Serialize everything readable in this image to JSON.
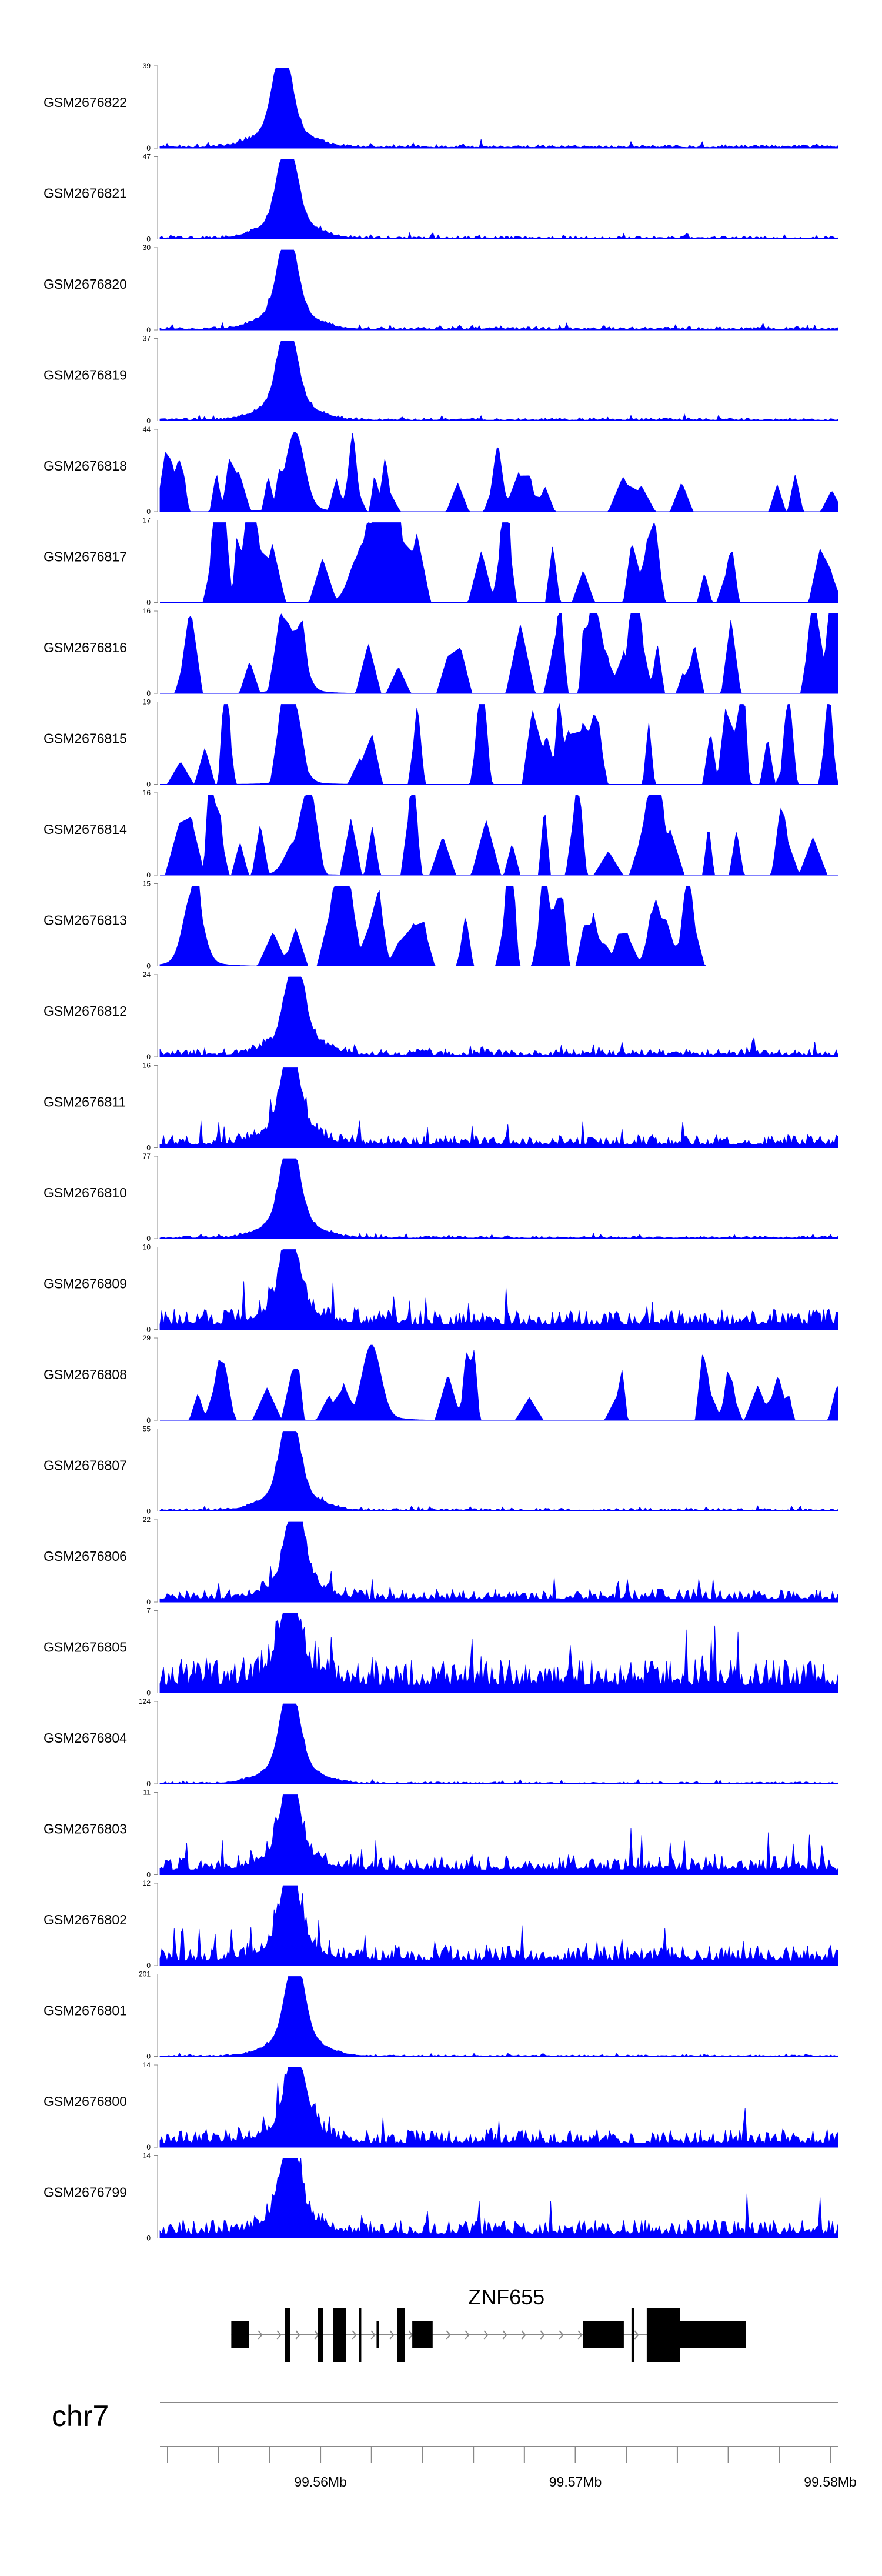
{
  "chart_data": {
    "type": "area",
    "title": "",
    "region": {
      "chromosome": "chr7",
      "start_mb": 99.5537,
      "end_mb": 99.5803
    },
    "color": "#0000ff",
    "tracks": [
      {
        "name": "GSM2676822",
        "ymax": "39",
        "ymin": "0",
        "peak_center": 99.5585,
        "peak_height": 1.0,
        "noise": 0.07,
        "sparse": false
      },
      {
        "name": "GSM2676821",
        "ymax": "47",
        "ymin": "0",
        "peak_center": 99.5587,
        "peak_height": 1.0,
        "noise": 0.06,
        "sparse": false
      },
      {
        "name": "GSM2676820",
        "ymax": "30",
        "ymin": "0",
        "peak_center": 99.5587,
        "peak_height": 1.0,
        "noise": 0.06,
        "sparse": false
      },
      {
        "name": "GSM2676819",
        "ymax": "37",
        "ymin": "0",
        "peak_center": 99.5587,
        "peak_height": 1.0,
        "noise": 0.06,
        "sparse": false
      },
      {
        "name": "GSM2676818",
        "ymax": "44",
        "ymin": "0",
        "peak_center": 99.559,
        "peak_height": 0.95,
        "noise": 0.2,
        "sparse": true
      },
      {
        "name": "GSM2676817",
        "ymax": "17",
        "ymin": "0",
        "peak_center": 99.5615,
        "peak_height": 0.55,
        "noise": 0.55,
        "sparse": true
      },
      {
        "name": "GSM2676816",
        "ymax": "16",
        "ymin": "0",
        "peak_center": 99.559,
        "peak_height": 0.75,
        "noise": 0.6,
        "sparse": true
      },
      {
        "name": "GSM2676815",
        "ymax": "19",
        "ymin": "0",
        "peak_center": 99.559,
        "peak_height": 0.4,
        "noise": 0.65,
        "sparse": true
      },
      {
        "name": "GSM2676814",
        "ymax": "16",
        "ymin": "0",
        "peak_center": 99.559,
        "peak_height": 0.4,
        "noise": 0.55,
        "sparse": true
      },
      {
        "name": "GSM2676813",
        "ymax": "15",
        "ymin": "0",
        "peak_center": 99.555,
        "peak_height": 0.9,
        "noise": 0.5,
        "sparse": true
      },
      {
        "name": "GSM2676812",
        "ymax": "24",
        "ymin": "0",
        "peak_center": 99.559,
        "peak_height": 0.95,
        "noise": 0.15,
        "sparse": false
      },
      {
        "name": "GSM2676811",
        "ymax": "16",
        "ymin": "0",
        "peak_center": 99.5588,
        "peak_height": 0.95,
        "noise": 0.25,
        "sparse": false
      },
      {
        "name": "GSM2676810",
        "ymax": "77",
        "ymin": "0",
        "peak_center": 99.5588,
        "peak_height": 1.0,
        "noise": 0.05,
        "sparse": false
      },
      {
        "name": "GSM2676809",
        "ymax": "10",
        "ymin": "0",
        "peak_center": 99.5588,
        "peak_height": 0.9,
        "noise": 0.4,
        "sparse": false
      },
      {
        "name": "GSM2676808",
        "ymax": "29",
        "ymin": "0",
        "peak_center": 99.562,
        "peak_height": 0.9,
        "noise": 0.35,
        "sparse": true
      },
      {
        "name": "GSM2676807",
        "ymax": "55",
        "ymin": "0",
        "peak_center": 99.5588,
        "peak_height": 1.0,
        "noise": 0.06,
        "sparse": false
      },
      {
        "name": "GSM2676806",
        "ymax": "22",
        "ymin": "0",
        "peak_center": 99.559,
        "peak_height": 0.95,
        "noise": 0.25,
        "sparse": false
      },
      {
        "name": "GSM2676805",
        "ymax": "7",
        "ymin": "0",
        "peak_center": 99.5588,
        "peak_height": 0.9,
        "noise": 0.65,
        "sparse": false
      },
      {
        "name": "GSM2676804",
        "ymax": "124",
        "ymin": "0",
        "peak_center": 99.5588,
        "peak_height": 1.0,
        "noise": 0.04,
        "sparse": false
      },
      {
        "name": "GSM2676803",
        "ymax": "11",
        "ymin": "0",
        "peak_center": 99.5588,
        "peak_height": 0.9,
        "noise": 0.4,
        "sparse": false
      },
      {
        "name": "GSM2676802",
        "ymax": "12",
        "ymin": "0",
        "peak_center": 99.5588,
        "peak_height": 0.9,
        "noise": 0.4,
        "sparse": false
      },
      {
        "name": "GSM2676801",
        "ymax": "201",
        "ymin": "0",
        "peak_center": 99.559,
        "peak_height": 1.0,
        "noise": 0.03,
        "sparse": false
      },
      {
        "name": "GSM2676800",
        "ymax": "14",
        "ymin": "0",
        "peak_center": 99.559,
        "peak_height": 0.95,
        "noise": 0.35,
        "sparse": false
      },
      {
        "name": "GSM2676799",
        "ymax": "14",
        "ymin": "0",
        "peak_center": 99.5588,
        "peak_height": 0.95,
        "noise": 0.35,
        "sparse": false
      }
    ],
    "gene": {
      "name": "ZNF655",
      "strand": "+",
      "start_mb": 99.5565,
      "end_mb": 99.5767,
      "exons_mb": [
        [
          99.5565,
          99.5572,
          "small"
        ],
        [
          99.5586,
          99.5588,
          "large"
        ],
        [
          99.5599,
          99.5601,
          "large"
        ],
        [
          99.5605,
          99.561,
          "large"
        ],
        [
          99.5615,
          99.5616,
          "large"
        ],
        [
          99.5622,
          99.5623,
          "small"
        ],
        [
          99.563,
          99.5633,
          "large"
        ],
        [
          99.5636,
          99.5644,
          "small"
        ],
        [
          99.5703,
          99.5719,
          "small"
        ],
        [
          99.5722,
          99.5723,
          "large"
        ],
        [
          99.5728,
          99.5741,
          "large"
        ],
        [
          99.5741,
          99.5767,
          "small"
        ]
      ]
    },
    "x_axis": {
      "chromosome_label": "chr7",
      "ticks_mb": [
        99.554,
        99.556,
        99.558,
        99.56,
        99.562,
        99.564,
        99.566,
        99.568,
        99.57,
        99.572,
        99.574,
        99.576,
        99.578,
        99.58
      ],
      "labels": [
        {
          "value": 99.56,
          "text": "99.56Mb"
        },
        {
          "value": 99.57,
          "text": "99.57Mb"
        },
        {
          "value": 99.58,
          "text": "99.58Mb"
        }
      ]
    }
  }
}
